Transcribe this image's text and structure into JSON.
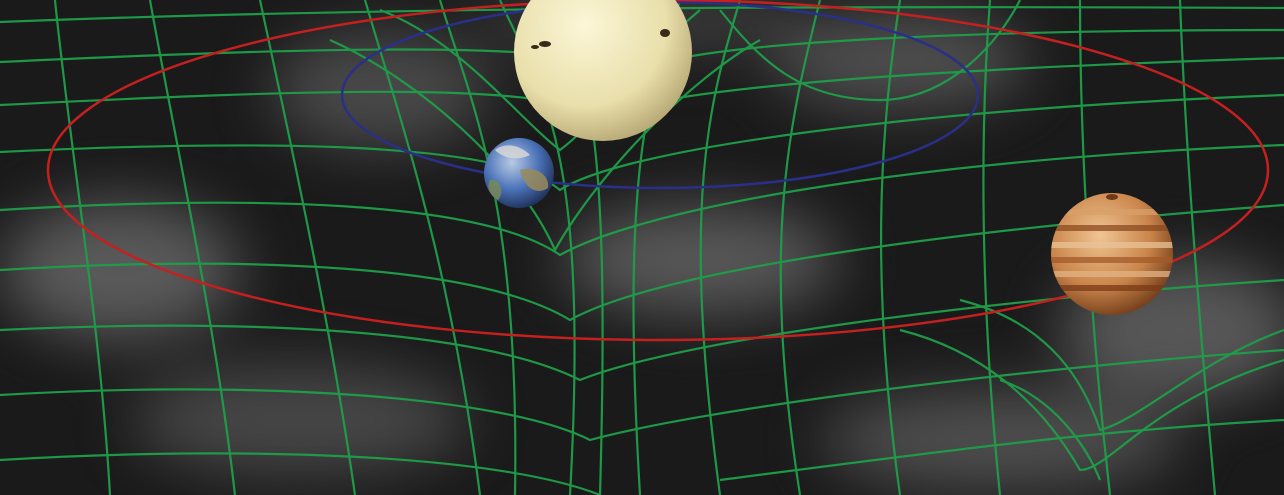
{
  "scene": {
    "type": "spacetime-curvature-illustration",
    "background_color": "#1a1a1a",
    "haze_color": "#9a9a9a",
    "grid_color": "#1f9e4a",
    "inner_orbit_color": "#2a2f8a",
    "outer_orbit_color": "#c42020",
    "bodies": [
      {
        "name": "sun",
        "icon": "sun-sphere",
        "color": "#eee6b4",
        "shade": "#b3a470"
      },
      {
        "name": "earth",
        "icon": "earth-sphere",
        "color": "#4a72b8",
        "shade": "#1d2c52"
      },
      {
        "name": "jupiter",
        "icon": "jupiter-sphere",
        "color": "#c9844a",
        "shade": "#6e3a18"
      }
    ]
  }
}
